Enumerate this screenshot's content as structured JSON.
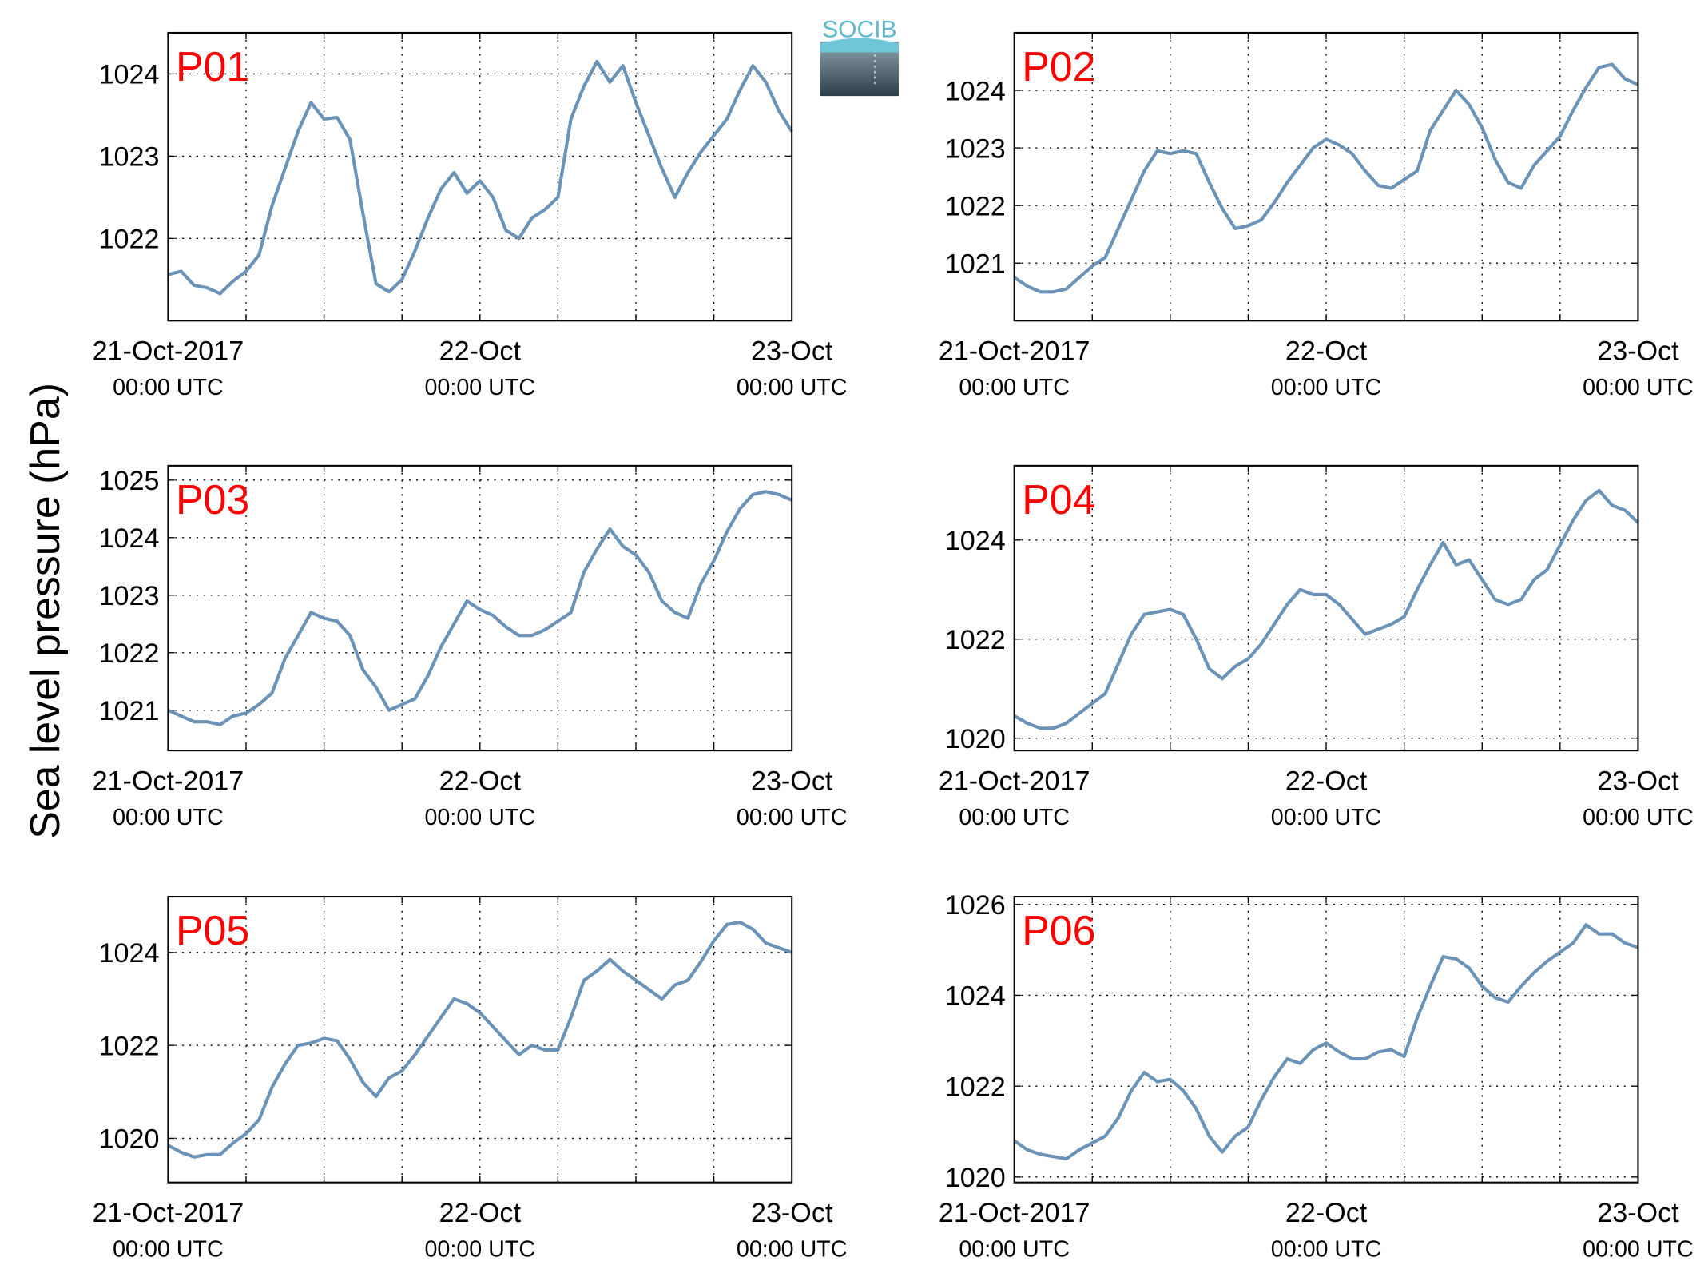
{
  "ylabel": "Sea level pressure (hPa)",
  "logo": "SOCIB",
  "chart_data": [
    {
      "type": "line",
      "title": "P01",
      "title_color": "#ff0000",
      "color": "#6a93b7",
      "grid": true,
      "x": [
        0,
        1,
        2,
        3,
        4,
        5,
        6,
        7,
        8,
        9,
        10,
        11,
        12,
        13,
        14,
        15,
        16,
        17,
        18,
        19,
        20,
        21,
        22,
        23,
        24,
        25,
        26,
        27,
        28,
        29,
        30,
        31,
        32,
        33,
        34,
        35,
        36,
        37,
        38,
        39,
        40,
        41,
        42,
        43,
        44,
        45,
        46,
        47,
        48
      ],
      "values": [
        1021.56,
        1021.6,
        1021.43,
        1021.4,
        1021.33,
        1021.48,
        1021.6,
        1021.8,
        1022.4,
        1022.85,
        1023.3,
        1023.65,
        1023.45,
        1023.47,
        1023.2,
        1022.3,
        1021.45,
        1021.35,
        1021.5,
        1021.85,
        1022.25,
        1022.6,
        1022.8,
        1022.55,
        1022.7,
        1022.5,
        1022.1,
        1022.0,
        1022.25,
        1022.35,
        1022.5,
        1023.45,
        1023.85,
        1024.15,
        1023.9,
        1024.1,
        1023.65,
        1023.25,
        1022.85,
        1022.5,
        1022.8,
        1023.05,
        1023.25,
        1023.45,
        1023.8,
        1024.1,
        1023.9,
        1023.55,
        1023.3
      ],
      "xlim": [
        0,
        48
      ],
      "xticks": [
        {
          "value": 0,
          "label": "21-Oct-2017"
        },
        {
          "value": 24,
          "label": "22-Oct"
        },
        {
          "value": 48,
          "label": "23-Oct"
        }
      ],
      "xtick_sublabels": [
        "00:00 UTC",
        "00:00 UTC",
        "00:00 UTC"
      ],
      "xminor": [
        6,
        12,
        18,
        30,
        36,
        42
      ],
      "ylim": [
        1021,
        1024.5
      ],
      "yticks": [
        1022,
        1023,
        1024
      ]
    },
    {
      "type": "line",
      "title": "P02",
      "title_color": "#ff0000",
      "color": "#6a93b7",
      "grid": true,
      "x": [
        0,
        1,
        2,
        3,
        4,
        5,
        6,
        7,
        8,
        9,
        10,
        11,
        12,
        13,
        14,
        15,
        16,
        17,
        18,
        19,
        20,
        21,
        22,
        23,
        24,
        25,
        26,
        27,
        28,
        29,
        30,
        31,
        32,
        33,
        34,
        35,
        36,
        37,
        38,
        39,
        40,
        41,
        42,
        43,
        44,
        45,
        46,
        47,
        48
      ],
      "values": [
        1020.75,
        1020.6,
        1020.5,
        1020.5,
        1020.55,
        1020.75,
        1020.95,
        1021.1,
        1021.6,
        1022.1,
        1022.6,
        1022.95,
        1022.9,
        1022.95,
        1022.9,
        1022.4,
        1021.95,
        1021.6,
        1021.65,
        1021.75,
        1022.05,
        1022.4,
        1022.7,
        1023.0,
        1023.15,
        1023.05,
        1022.9,
        1022.6,
        1022.35,
        1022.3,
        1022.45,
        1022.6,
        1023.3,
        1023.65,
        1024.0,
        1023.75,
        1023.35,
        1022.8,
        1022.4,
        1022.3,
        1022.7,
        1022.95,
        1023.2,
        1023.65,
        1024.05,
        1024.4,
        1024.45,
        1024.2,
        1024.1
      ],
      "xlim": [
        0,
        48
      ],
      "xticks": [
        {
          "value": 0,
          "label": "21-Oct-2017"
        },
        {
          "value": 24,
          "label": "22-Oct"
        },
        {
          "value": 48,
          "label": "23-Oct"
        }
      ],
      "xtick_sublabels": [
        "00:00 UTC",
        "00:00 UTC",
        "00:00 UTC"
      ],
      "xminor": [
        6,
        12,
        18,
        30,
        36,
        42
      ],
      "ylim": [
        1020,
        1025
      ],
      "yticks": [
        1021,
        1022,
        1023,
        1024
      ]
    },
    {
      "type": "line",
      "title": "P03",
      "title_color": "#ff0000",
      "color": "#6a93b7",
      "grid": true,
      "x": [
        0,
        1,
        2,
        3,
        4,
        5,
        6,
        7,
        8,
        9,
        10,
        11,
        12,
        13,
        14,
        15,
        16,
        17,
        18,
        19,
        20,
        21,
        22,
        23,
        24,
        25,
        26,
        27,
        28,
        29,
        30,
        31,
        32,
        33,
        34,
        35,
        36,
        37,
        38,
        39,
        40,
        41,
        42,
        43,
        44,
        45,
        46,
        47,
        48
      ],
      "values": [
        1021.0,
        1020.9,
        1020.8,
        1020.8,
        1020.75,
        1020.9,
        1020.95,
        1021.1,
        1021.3,
        1021.9,
        1022.3,
        1022.7,
        1022.6,
        1022.55,
        1022.3,
        1021.7,
        1021.4,
        1021.0,
        1021.1,
        1021.2,
        1021.6,
        1022.1,
        1022.5,
        1022.9,
        1022.75,
        1022.65,
        1022.45,
        1022.3,
        1022.3,
        1022.4,
        1022.55,
        1022.7,
        1023.4,
        1023.8,
        1024.15,
        1023.85,
        1023.7,
        1023.4,
        1022.9,
        1022.7,
        1022.6,
        1023.2,
        1023.6,
        1024.1,
        1024.5,
        1024.75,
        1024.8,
        1024.75,
        1024.65
      ],
      "xlim": [
        0,
        48
      ],
      "xticks": [
        {
          "value": 0,
          "label": "21-Oct-2017"
        },
        {
          "value": 24,
          "label": "22-Oct"
        },
        {
          "value": 48,
          "label": "23-Oct"
        }
      ],
      "xtick_sublabels": [
        "00:00 UTC",
        "00:00 UTC",
        "00:00 UTC"
      ],
      "xminor": [
        6,
        12,
        18,
        30,
        36,
        42
      ],
      "ylim": [
        1020.3,
        1025.25
      ],
      "yticks": [
        1021,
        1022,
        1023,
        1024,
        1025
      ]
    },
    {
      "type": "line",
      "title": "P04",
      "title_color": "#ff0000",
      "color": "#6a93b7",
      "grid": true,
      "x": [
        0,
        1,
        2,
        3,
        4,
        5,
        6,
        7,
        8,
        9,
        10,
        11,
        12,
        13,
        14,
        15,
        16,
        17,
        18,
        19,
        20,
        21,
        22,
        23,
        24,
        25,
        26,
        27,
        28,
        29,
        30,
        31,
        32,
        33,
        34,
        35,
        36,
        37,
        38,
        39,
        40,
        41,
        42,
        43,
        44,
        45,
        46,
        47,
        48
      ],
      "values": [
        1020.45,
        1020.3,
        1020.2,
        1020.2,
        1020.3,
        1020.5,
        1020.7,
        1020.9,
        1021.5,
        1022.1,
        1022.5,
        1022.55,
        1022.6,
        1022.5,
        1022.0,
        1021.4,
        1021.2,
        1021.45,
        1021.6,
        1021.9,
        1022.3,
        1022.7,
        1023.0,
        1022.9,
        1022.9,
        1022.7,
        1022.4,
        1022.1,
        1022.2,
        1022.3,
        1022.45,
        1023.0,
        1023.5,
        1023.95,
        1023.5,
        1023.6,
        1023.2,
        1022.8,
        1022.7,
        1022.8,
        1023.2,
        1023.4,
        1023.9,
        1024.4,
        1024.8,
        1025.0,
        1024.7,
        1024.6,
        1024.35
      ],
      "xlim": [
        0,
        48
      ],
      "xticks": [
        {
          "value": 0,
          "label": "21-Oct-2017"
        },
        {
          "value": 24,
          "label": "22-Oct"
        },
        {
          "value": 48,
          "label": "23-Oct"
        }
      ],
      "xtick_sublabels": [
        "00:00 UTC",
        "00:00 UTC",
        "00:00 UTC"
      ],
      "xminor": [
        6,
        12,
        18,
        30,
        36,
        42
      ],
      "ylim": [
        1019.75,
        1025.5
      ],
      "yticks": [
        1020,
        1022,
        1024
      ]
    },
    {
      "type": "line",
      "title": "P05",
      "title_color": "#ff0000",
      "color": "#6a93b7",
      "grid": true,
      "x": [
        0,
        1,
        2,
        3,
        4,
        5,
        6,
        7,
        8,
        9,
        10,
        11,
        12,
        13,
        14,
        15,
        16,
        17,
        18,
        19,
        20,
        21,
        22,
        23,
        24,
        25,
        26,
        27,
        28,
        29,
        30,
        31,
        32,
        33,
        34,
        35,
        36,
        37,
        38,
        39,
        40,
        41,
        42,
        43,
        44,
        45,
        46,
        47,
        48
      ],
      "values": [
        1019.85,
        1019.7,
        1019.6,
        1019.65,
        1019.65,
        1019.9,
        1020.1,
        1020.4,
        1021.1,
        1021.6,
        1022.0,
        1022.05,
        1022.15,
        1022.1,
        1021.7,
        1021.2,
        1020.9,
        1021.3,
        1021.45,
        1021.8,
        1022.2,
        1022.6,
        1023.0,
        1022.9,
        1022.7,
        1022.4,
        1022.1,
        1021.8,
        1022.0,
        1021.9,
        1021.9,
        1022.6,
        1023.4,
        1023.6,
        1023.85,
        1023.6,
        1023.4,
        1023.2,
        1023.0,
        1023.3,
        1023.4,
        1023.8,
        1024.25,
        1024.6,
        1024.65,
        1024.5,
        1024.2,
        1024.1,
        1024.0
      ],
      "xlim": [
        0,
        48
      ],
      "xticks": [
        {
          "value": 0,
          "label": "21-Oct-2017"
        },
        {
          "value": 24,
          "label": "22-Oct"
        },
        {
          "value": 48,
          "label": "23-Oct"
        }
      ],
      "xtick_sublabels": [
        "00:00 UTC",
        "00:00 UTC",
        "00:00 UTC"
      ],
      "xminor": [
        6,
        12,
        18,
        30,
        36,
        42
      ],
      "ylim": [
        1019.05,
        1025.2
      ],
      "yticks": [
        1020,
        1022,
        1024
      ]
    },
    {
      "type": "line",
      "title": "P06",
      "title_color": "#ff0000",
      "color": "#6a93b7",
      "grid": true,
      "x": [
        0,
        1,
        2,
        3,
        4,
        5,
        6,
        7,
        8,
        9,
        10,
        11,
        12,
        13,
        14,
        15,
        16,
        17,
        18,
        19,
        20,
        21,
        22,
        23,
        24,
        25,
        26,
        27,
        28,
        29,
        30,
        31,
        32,
        33,
        34,
        35,
        36,
        37,
        38,
        39,
        40,
        41,
        42,
        43,
        44,
        45,
        46,
        47,
        48
      ],
      "values": [
        1020.8,
        1020.6,
        1020.5,
        1020.45,
        1020.4,
        1020.6,
        1020.75,
        1020.9,
        1021.3,
        1021.9,
        1022.3,
        1022.1,
        1022.15,
        1021.9,
        1021.5,
        1020.9,
        1020.55,
        1020.9,
        1021.1,
        1021.7,
        1022.2,
        1022.6,
        1022.5,
        1022.8,
        1022.95,
        1022.75,
        1022.6,
        1022.6,
        1022.75,
        1022.8,
        1022.65,
        1023.5,
        1024.2,
        1024.85,
        1024.8,
        1024.6,
        1024.2,
        1023.95,
        1023.85,
        1024.2,
        1024.5,
        1024.75,
        1024.95,
        1025.15,
        1025.55,
        1025.35,
        1025.35,
        1025.15,
        1025.05
      ],
      "xlim": [
        0,
        48
      ],
      "xticks": [
        {
          "value": 0,
          "label": "21-Oct-2017"
        },
        {
          "value": 24,
          "label": "22-Oct"
        },
        {
          "value": 48,
          "label": "23-Oct"
        }
      ],
      "xtick_sublabels": [
        "00:00 UTC",
        "00:00 UTC",
        "00:00 UTC"
      ],
      "xminor": [
        6,
        12,
        18,
        30,
        36,
        42
      ],
      "ylim": [
        1019.88,
        1026.17
      ],
      "yticks": [
        1020,
        1022,
        1024,
        1026
      ]
    }
  ]
}
